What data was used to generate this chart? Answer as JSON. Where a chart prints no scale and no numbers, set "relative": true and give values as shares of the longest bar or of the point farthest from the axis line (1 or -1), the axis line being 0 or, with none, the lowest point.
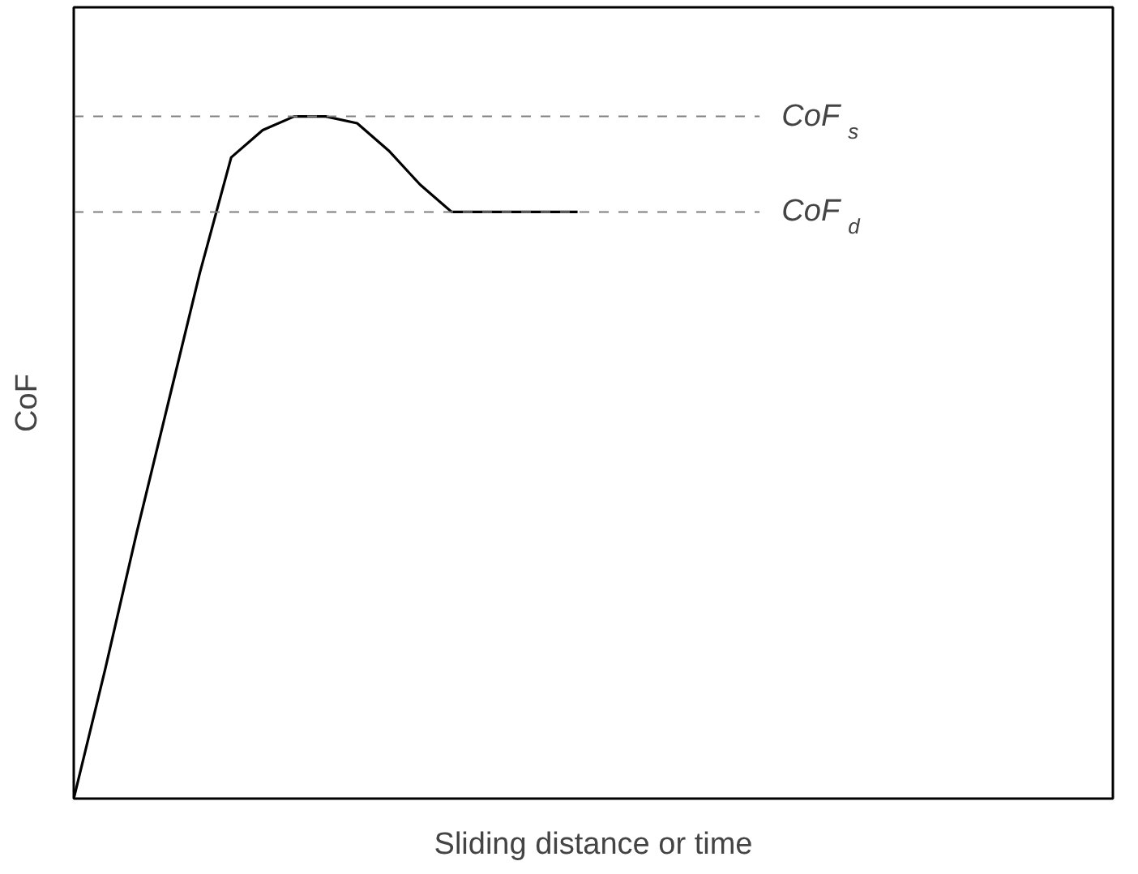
{
  "chart_data": {
    "type": "line",
    "relative": true,
    "xlabel": "Sliding distance or time",
    "ylabel": "CoF",
    "categories": [
      null,
      null,
      null,
      null,
      null,
      null,
      null,
      null,
      null,
      null,
      null,
      null,
      null,
      null,
      null,
      null,
      null,
      null,
      null,
      null,
      null,
      null,
      null,
      null,
      null,
      null,
      null,
      null,
      null,
      null,
      null,
      null,
      null,
      null
    ],
    "series": [
      {
        "color": "#000000",
        "values": [
          0,
          0.19,
          0.39,
          0.58,
          0.77,
          0.94,
          0.98,
          1.0,
          1.0,
          0.99,
          0.95,
          0.9,
          0.86,
          0.86,
          0.86,
          0.86,
          0.86,
          null,
          null,
          null,
          null,
          null,
          null,
          null,
          null,
          null,
          null,
          null,
          null,
          null,
          null,
          null,
          null,
          null
        ]
      }
    ],
    "ref_lines": [
      {
        "axis": "y",
        "value": 1.0,
        "label": "CoF$_{s}$",
        "color": "#808080",
        "line_style": "dashed"
      },
      {
        "axis": "y",
        "value": 0.86,
        "label": "CoF$_{d}$",
        "color": "#808080",
        "line_style": "dashed"
      }
    ],
    "marker": "none",
    "line_style": "solid"
  }
}
